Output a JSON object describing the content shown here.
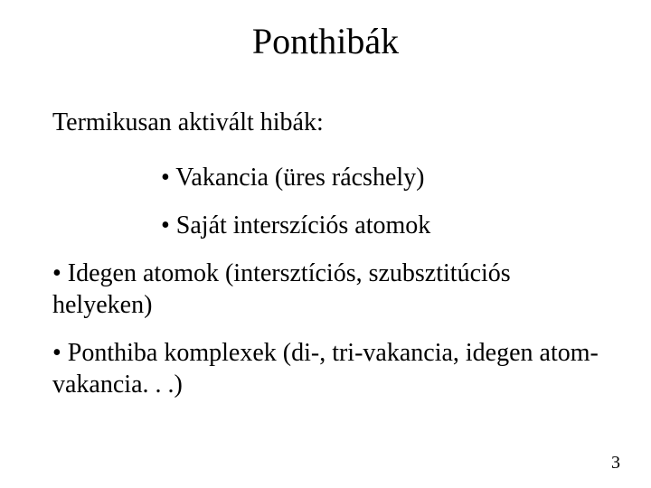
{
  "slide": {
    "title": "Ponthibák",
    "subhead": "Termikusan aktivált hibák:",
    "sub_bullets": [
      "• Vakancia (üres rácshely)",
      "• Saját interszíciós atomok"
    ],
    "bullets": [
      "• Idegen atomok (intersztíciós, szubsztitúciós helyeken)",
      "• Ponthiba komplexek (di-, tri-vakancia, idegen atom-vakancia. . .)"
    ],
    "page_number": "3"
  },
  "style": {
    "background_color": "#ffffff",
    "text_color": "#000000",
    "title_fontsize": 40,
    "body_fontsize": 28,
    "pagenum_fontsize": 20,
    "font_family": "Times New Roman"
  }
}
